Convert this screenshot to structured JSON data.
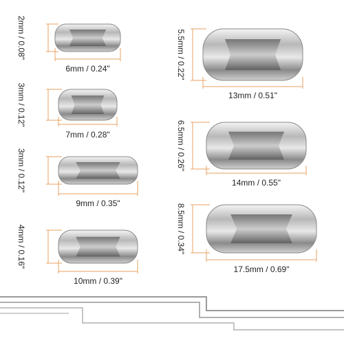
{
  "items": [
    {
      "height": "2mm / 0.08\"",
      "width": "6mm / 0.24\""
    },
    {
      "height": "3mm / 0.12\"",
      "width": "7mm / 0.28\""
    },
    {
      "height": "3mm / 0.12\"",
      "width": "9mm / 0.35\""
    },
    {
      "height": "4mm / 0.16\"",
      "width": "10mm / 0.39\""
    },
    {
      "height": "5.5mm / 0.22\"",
      "width": "13mm / 0.51\""
    },
    {
      "height": "6.5mm / 0.26\"",
      "width": "14mm / 0.55\""
    },
    {
      "height": "8.5mm / 0.34\"",
      "width": "17.5mm / 0.69\""
    }
  ]
}
